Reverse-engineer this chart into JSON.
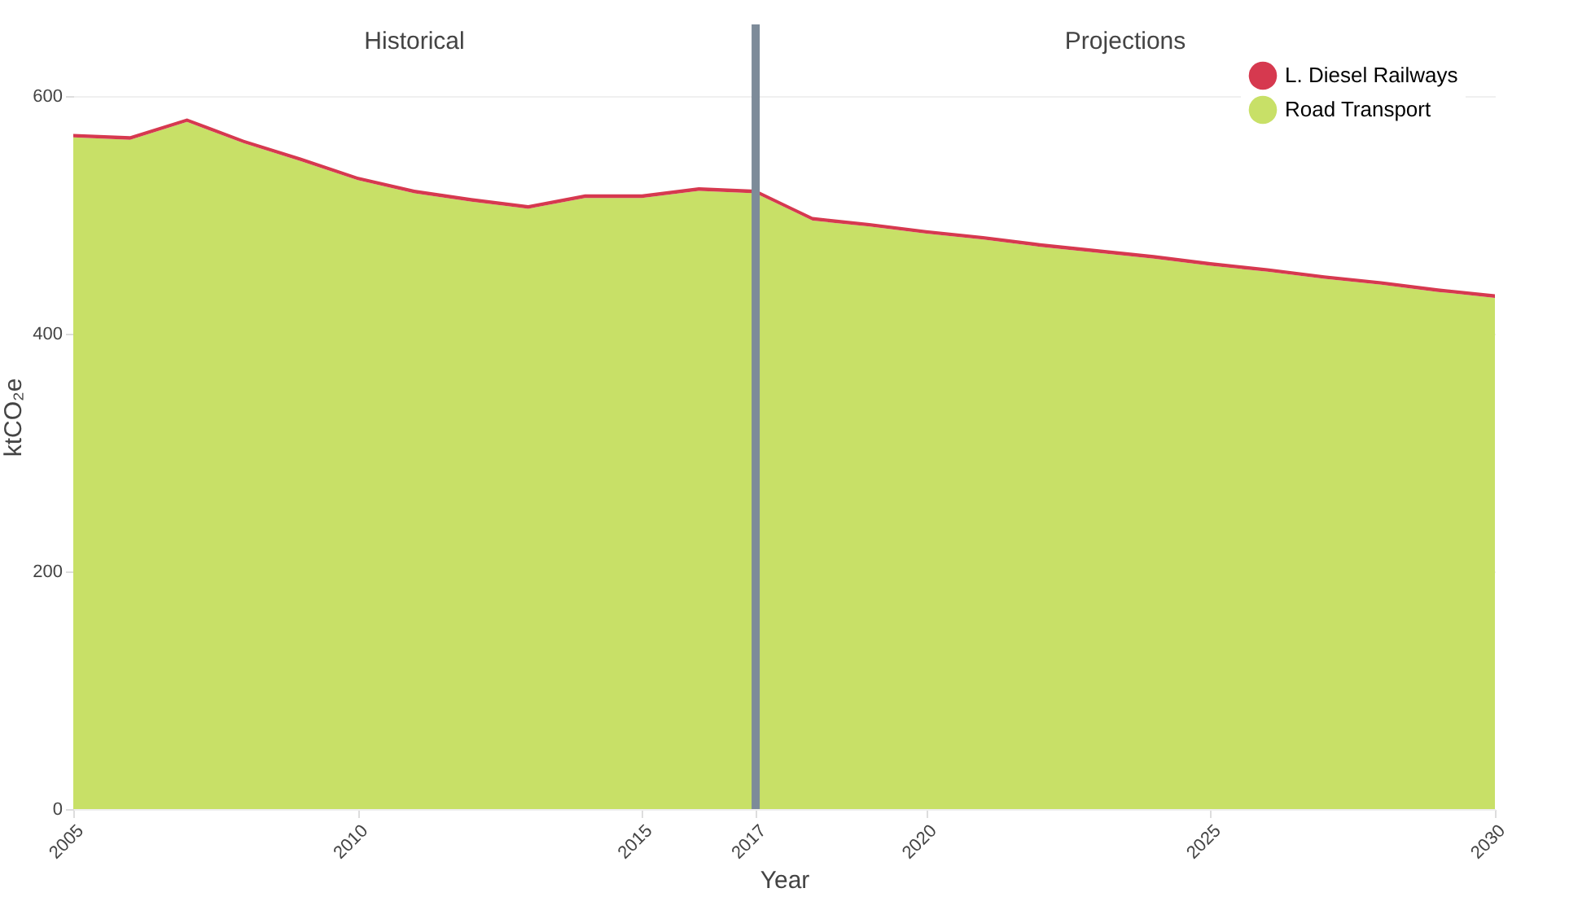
{
  "chart_data": {
    "type": "area",
    "stacked": true,
    "xlabel": "Year",
    "ylabel": "ktCO₂e",
    "x": [
      2005,
      2006,
      2007,
      2008,
      2009,
      2010,
      2011,
      2012,
      2013,
      2014,
      2015,
      2016,
      2017,
      2018,
      2019,
      2020,
      2021,
      2022,
      2023,
      2024,
      2025,
      2026,
      2027,
      2028,
      2029,
      2030
    ],
    "series": [
      {
        "name": "Road Transport",
        "color": "#c8e067",
        "values": [
          565,
          563,
          578,
          560,
          545,
          529,
          518,
          511,
          505,
          514,
          514,
          520,
          518,
          495,
          490,
          484,
          479,
          473,
          468,
          463,
          457,
          452,
          446,
          441,
          435,
          430
        ]
      },
      {
        "name": "L. Diesel Railways",
        "color": "#d6394f",
        "values": [
          3,
          3,
          3,
          3,
          3,
          3,
          3,
          3,
          3,
          3,
          3,
          3,
          3,
          3,
          3,
          3,
          3,
          3,
          3,
          3,
          3,
          3,
          3,
          3,
          3,
          3
        ]
      }
    ],
    "xlim": [
      2005,
      2030
    ],
    "xticks": [
      2005,
      2010,
      2015,
      2017,
      2020,
      2025,
      2030
    ],
    "ylim": [
      0,
      660
    ],
    "yticks": [
      0,
      200,
      400,
      600
    ],
    "grid": "y",
    "legend": "top right",
    "ref_lines": [
      {
        "axis": "x",
        "value": 2017,
        "color": "#7d8b99"
      }
    ],
    "annotations": [
      "Historical",
      "Projections"
    ]
  }
}
